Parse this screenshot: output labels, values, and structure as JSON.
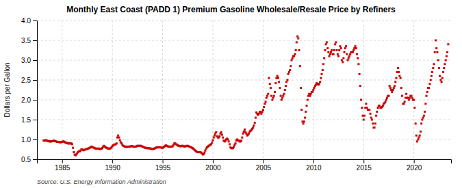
{
  "chart_data": {
    "type": "scatter",
    "title": "Monthly East Coast (PADD 1) Premium Gasoline Wholesale/Resale Price by Refiners",
    "ylabel": "Dollars per Gallon",
    "source": "Source: U.S. Energy Information Administration",
    "color": "#cc0000",
    "marker": "square",
    "grid": true,
    "xlim": [
      1982.5,
      2023.7
    ],
    "ylim": [
      0.5,
      4.0
    ],
    "xticks": [
      1985,
      1990,
      1995,
      2000,
      2005,
      2010,
      2015,
      2020
    ],
    "yticks": [
      0.5,
      {
        "value": 1.0,
        "label": "1.0"
      },
      1.5,
      {
        "value": 2.0,
        "label": "2.0"
      },
      2.5,
      {
        "value": 3.0,
        "label": "3.0"
      },
      3.5,
      {
        "value": 4.0,
        "label": "4.0"
      }
    ],
    "x": [
      1983.17,
      1983.25,
      1983.33,
      1983.42,
      1983.5,
      1983.58,
      1983.67,
      1983.75,
      1983.83,
      1983.92,
      1984.0,
      1984.08,
      1984.17,
      1984.25,
      1984.33,
      1984.42,
      1984.5,
      1984.58,
      1984.67,
      1984.75,
      1984.83,
      1984.92,
      1985.0,
      1985.08,
      1985.17,
      1985.25,
      1985.33,
      1985.42,
      1985.5,
      1985.58,
      1985.67,
      1985.75,
      1985.83,
      1985.92,
      1986.0,
      1986.08,
      1986.17,
      1986.25,
      1986.33,
      1986.42,
      1986.5,
      1986.58,
      1986.67,
      1986.75,
      1986.83,
      1986.92,
      1987.0,
      1987.08,
      1987.17,
      1987.25,
      1987.33,
      1987.42,
      1987.5,
      1987.58,
      1987.67,
      1987.75,
      1987.83,
      1987.92,
      1988.0,
      1988.08,
      1988.17,
      1988.25,
      1988.33,
      1988.42,
      1988.5,
      1988.58,
      1988.67,
      1988.75,
      1988.83,
      1988.92,
      1989.0,
      1989.08,
      1989.17,
      1989.25,
      1989.33,
      1989.42,
      1989.5,
      1989.58,
      1989.67,
      1989.75,
      1989.83,
      1989.92,
      1990.0,
      1990.08,
      1990.17,
      1990.25,
      1990.33,
      1990.42,
      1990.5,
      1990.58,
      1990.67,
      1990.75,
      1990.83,
      1990.92,
      1991.0,
      1991.08,
      1991.17,
      1991.25,
      1991.33,
      1991.42,
      1991.5,
      1991.58,
      1991.67,
      1991.75,
      1991.83,
      1991.92,
      1992.0,
      1992.08,
      1992.17,
      1992.25,
      1992.33,
      1992.42,
      1992.5,
      1992.58,
      1992.67,
      1992.75,
      1992.83,
      1992.92,
      1993.0,
      1993.08,
      1993.17,
      1993.25,
      1993.33,
      1993.42,
      1993.5,
      1993.58,
      1993.67,
      1993.75,
      1993.83,
      1993.92,
      1994.0,
      1994.08,
      1994.17,
      1994.25,
      1994.33,
      1994.42,
      1994.5,
      1994.58,
      1994.67,
      1994.75,
      1994.83,
      1994.92,
      1995.0,
      1995.08,
      1995.17,
      1995.25,
      1995.33,
      1995.42,
      1995.5,
      1995.58,
      1995.67,
      1995.75,
      1995.83,
      1995.92,
      1996.0,
      1996.08,
      1996.17,
      1996.25,
      1996.33,
      1996.42,
      1996.5,
      1996.58,
      1996.67,
      1996.75,
      1996.83,
      1996.92,
      1997.0,
      1997.08,
      1997.17,
      1997.25,
      1997.33,
      1997.42,
      1997.5,
      1997.58,
      1997.67,
      1997.75,
      1997.83,
      1997.92,
      1998.0,
      1998.08,
      1998.17,
      1998.25,
      1998.33,
      1998.42,
      1998.5,
      1998.58,
      1998.67,
      1998.75,
      1998.83,
      1998.92,
      1999.0,
      1999.08,
      1999.17,
      1999.25,
      1999.33,
      1999.42,
      1999.5,
      1999.58,
      1999.67,
      1999.75,
      1999.83,
      1999.92,
      2000.0,
      2000.08,
      2000.17,
      2000.25,
      2000.33,
      2000.42,
      2000.5,
      2000.58,
      2000.67,
      2000.75,
      2000.83,
      2000.92,
      2001.0,
      2001.08,
      2001.17,
      2001.25,
      2001.33,
      2001.42,
      2001.5,
      2001.58,
      2001.67,
      2001.75,
      2001.83,
      2001.92,
      2002.0,
      2002.08,
      2002.17,
      2002.25,
      2002.33,
      2002.42,
      2002.5,
      2002.58,
      2002.67,
      2002.75,
      2002.83,
      2002.92,
      2003.0,
      2003.08,
      2003.17,
      2003.25,
      2003.33,
      2003.42,
      2003.5,
      2003.58,
      2003.67,
      2003.75,
      2003.83,
      2003.92,
      2004.0,
      2004.08,
      2004.17,
      2004.25,
      2004.33,
      2004.42,
      2004.5,
      2004.58,
      2004.67,
      2004.75,
      2004.83,
      2004.92,
      2005.0,
      2005.08,
      2005.17,
      2005.25,
      2005.33,
      2005.42,
      2005.5,
      2005.58,
      2005.67,
      2005.75,
      2005.83,
      2005.92,
      2006.0,
      2006.08,
      2006.17,
      2006.25,
      2006.33,
      2006.42,
      2006.5,
      2006.58,
      2006.67,
      2006.75,
      2006.83,
      2006.92,
      2007.0,
      2007.08,
      2007.17,
      2007.25,
      2007.33,
      2007.42,
      2007.5,
      2007.58,
      2007.67,
      2007.75,
      2007.83,
      2007.92,
      2008.0,
      2008.08,
      2008.17,
      2008.25,
      2008.33,
      2008.42,
      2008.5,
      2008.58,
      2008.67,
      2008.75,
      2008.83,
      2008.92,
      2009.0,
      2009.08,
      2009.17,
      2009.25,
      2009.33,
      2009.42,
      2009.5,
      2009.58,
      2009.67,
      2009.75,
      2009.83,
      2009.92,
      2010.0,
      2010.08,
      2010.17,
      2010.25,
      2010.33,
      2010.42,
      2010.5,
      2010.58,
      2010.67,
      2010.75,
      2010.83,
      2010.92,
      2011.0,
      2011.08,
      2011.17,
      2011.25,
      2011.33,
      2011.42,
      2011.5,
      2011.58,
      2011.67,
      2011.75,
      2011.83,
      2011.92,
      2012.0,
      2012.08,
      2012.17,
      2012.25,
      2012.33,
      2012.42,
      2012.5,
      2012.58,
      2012.67,
      2012.75,
      2012.83,
      2012.92,
      2013.0,
      2013.08,
      2013.17,
      2013.25,
      2013.33,
      2013.42,
      2013.5,
      2013.58,
      2013.67,
      2013.75,
      2013.83,
      2013.92,
      2014.0,
      2014.08,
      2014.17,
      2014.25,
      2014.33,
      2014.42,
      2014.5,
      2014.58,
      2014.67,
      2014.75,
      2014.83,
      2014.92,
      2015.0,
      2015.08,
      2015.17,
      2015.25,
      2015.33,
      2015.42,
      2015.5,
      2015.58,
      2015.67,
      2015.75,
      2015.83,
      2015.92,
      2016.0,
      2016.08,
      2016.17,
      2016.25,
      2016.33,
      2016.42,
      2016.5,
      2016.58,
      2016.67,
      2016.75,
      2016.83,
      2016.92,
      2017.0,
      2017.08,
      2017.17,
      2017.25,
      2017.33,
      2017.42,
      2017.5,
      2017.58,
      2017.67,
      2017.75,
      2017.83,
      2017.92,
      2018.0,
      2018.08,
      2018.17,
      2018.25,
      2018.33,
      2018.42,
      2018.5,
      2018.58,
      2018.67,
      2018.75,
      2018.83,
      2018.92,
      2019.0,
      2019.08,
      2019.17,
      2019.25,
      2019.33,
      2019.42,
      2019.5,
      2019.58,
      2019.67,
      2019.75,
      2019.83,
      2019.92,
      2020.0,
      2020.08,
      2020.17,
      2020.25,
      2020.33,
      2020.42,
      2020.5,
      2020.58,
      2020.67,
      2020.75,
      2020.83,
      2020.92,
      2021.0,
      2021.08,
      2021.17,
      2021.25,
      2021.33,
      2021.42,
      2021.5,
      2021.58,
      2021.67,
      2021.75,
      2021.83,
      2021.92,
      2022.0,
      2022.08,
      2022.17,
      2022.25,
      2022.33,
      2022.42,
      2022.5,
      2022.58,
      2022.67,
      2022.75,
      2022.83,
      2022.92,
      2023.0,
      2023.08,
      2023.17,
      2023.25,
      2023.33,
      2023.42
    ],
    "values": [
      0.97,
      0.98,
      0.97,
      0.98,
      0.97,
      0.96,
      0.96,
      0.95,
      0.95,
      0.95,
      0.96,
      0.96,
      0.97,
      0.96,
      0.96,
      0.95,
      0.94,
      0.94,
      0.94,
      0.93,
      0.93,
      0.93,
      0.94,
      0.95,
      0.95,
      0.93,
      0.93,
      0.91,
      0.91,
      0.9,
      0.9,
      0.9,
      0.9,
      0.9,
      0.88,
      0.79,
      0.68,
      0.62,
      0.6,
      0.62,
      0.65,
      0.68,
      0.7,
      0.7,
      0.72,
      0.75,
      0.75,
      0.73,
      0.73,
      0.74,
      0.75,
      0.76,
      0.76,
      0.77,
      0.78,
      0.79,
      0.8,
      0.82,
      0.81,
      0.8,
      0.79,
      0.78,
      0.77,
      0.77,
      0.77,
      0.77,
      0.77,
      0.76,
      0.76,
      0.77,
      0.78,
      0.82,
      0.84,
      0.82,
      0.8,
      0.79,
      0.78,
      0.77,
      0.77,
      0.77,
      0.78,
      0.8,
      0.83,
      0.85,
      0.87,
      0.87,
      0.88,
      0.9,
      1.05,
      1.1,
      1.05,
      0.98,
      0.93,
      0.9,
      0.87,
      0.84,
      0.83,
      0.82,
      0.82,
      0.81,
      0.82,
      0.82,
      0.82,
      0.82,
      0.83,
      0.83,
      0.83,
      0.82,
      0.82,
      0.82,
      0.82,
      0.83,
      0.84,
      0.84,
      0.84,
      0.84,
      0.84,
      0.83,
      0.82,
      0.81,
      0.8,
      0.79,
      0.79,
      0.78,
      0.78,
      0.78,
      0.78,
      0.77,
      0.77,
      0.76,
      0.76,
      0.76,
      0.77,
      0.78,
      0.79,
      0.8,
      0.8,
      0.8,
      0.8,
      0.8,
      0.8,
      0.79,
      0.79,
      0.8,
      0.82,
      0.84,
      0.85,
      0.84,
      0.83,
      0.82,
      0.82,
      0.82,
      0.82,
      0.82,
      0.83,
      0.86,
      0.9,
      0.9,
      0.88,
      0.87,
      0.85,
      0.84,
      0.84,
      0.83,
      0.83,
      0.84,
      0.84,
      0.83,
      0.82,
      0.83,
      0.83,
      0.84,
      0.84,
      0.83,
      0.82,
      0.81,
      0.8,
      0.79,
      0.78,
      0.76,
      0.74,
      0.72,
      0.7,
      0.69,
      0.68,
      0.68,
      0.68,
      0.68,
      0.67,
      0.65,
      0.62,
      0.63,
      0.67,
      0.72,
      0.77,
      0.8,
      0.82,
      0.84,
      0.85,
      0.87,
      0.88,
      0.92,
      0.98,
      1.05,
      1.1,
      1.15,
      1.18,
      1.08,
      1.05,
      1.05,
      1.08,
      1.15,
      1.18,
      1.12,
      1.05,
      0.97,
      0.95,
      0.97,
      1.0,
      1.02,
      1.0,
      0.95,
      0.88,
      0.8,
      0.78,
      0.78,
      0.78,
      0.82,
      0.87,
      0.9,
      0.97,
      1.0,
      0.98,
      0.97,
      0.95,
      0.95,
      0.97,
      1.05,
      1.15,
      1.2,
      1.25,
      1.18,
      1.15,
      1.1,
      1.12,
      1.15,
      1.2,
      1.22,
      1.23,
      1.27,
      1.3,
      1.35,
      1.42,
      1.55,
      1.68,
      1.65,
      1.62,
      1.65,
      1.7,
      1.68,
      1.65,
      1.7,
      1.75,
      1.82,
      1.9,
      1.95,
      2.05,
      2.1,
      2.15,
      2.55,
      2.4,
      2.3,
      2.1,
      2.0,
      2.05,
      2.1,
      2.2,
      2.42,
      2.55,
      2.6,
      2.55,
      2.45,
      2.3,
      2.1,
      2.0,
      2.05,
      2.1,
      2.15,
      2.25,
      2.35,
      2.45,
      2.5,
      2.65,
      2.7,
      2.75,
      2.85,
      3.0,
      3.05,
      3.1,
      3.1,
      3.15,
      3.25,
      3.45,
      3.6,
      3.55,
      3.25,
      2.85,
      2.3,
      1.75,
      1.45,
      1.4,
      1.45,
      1.55,
      1.7,
      1.85,
      2.0,
      2.1,
      2.15,
      2.1,
      2.15,
      2.2,
      2.2,
      2.25,
      2.3,
      2.35,
      2.38,
      2.42,
      2.4,
      2.38,
      2.4,
      2.45,
      2.55,
      2.65,
      2.75,
      2.9,
      3.05,
      3.25,
      3.4,
      3.45,
      3.3,
      3.2,
      3.1,
      3.15,
      3.2,
      3.25,
      3.15,
      3.15,
      3.25,
      3.4,
      3.45,
      3.25,
      3.15,
      3.1,
      3.25,
      3.35,
      3.3,
      3.0,
      2.95,
      3.05,
      3.2,
      3.3,
      3.35,
      3.15,
      3.0,
      3.05,
      3.1,
      3.15,
      3.2,
      3.2,
      3.2,
      3.25,
      3.3,
      3.35,
      3.3,
      3.15,
      3.05,
      2.9,
      2.65,
      2.35,
      2.0,
      1.8,
      1.6,
      1.5,
      1.6,
      1.8,
      1.9,
      1.8,
      1.75,
      1.75,
      1.75,
      1.65,
      1.55,
      1.5,
      1.4,
      1.3,
      1.3,
      1.4,
      1.6,
      1.7,
      1.8,
      1.85,
      1.85,
      1.8,
      1.8,
      1.82,
      1.85,
      1.9,
      1.92,
      1.95,
      2.0,
      2.05,
      2.1,
      2.1,
      2.35,
      2.3,
      2.25,
      2.2,
      2.25,
      2.3,
      2.35,
      2.45,
      2.55,
      2.7,
      2.8,
      2.7,
      2.6,
      2.55,
      2.3,
      2.1,
      1.9,
      1.9,
      1.95,
      2.05,
      2.15,
      2.05,
      2.05,
      2.0,
      2.05,
      2.1,
      2.1,
      2.05,
      2.0,
      2.0,
      1.8,
      1.4,
      1.1,
      0.95,
      1.0,
      1.05,
      1.1,
      1.2,
      1.4,
      1.5,
      1.55,
      1.6,
      1.7,
      1.9,
      2.1,
      2.2,
      2.3,
      2.3,
      2.4,
      2.5,
      2.6,
      2.7,
      2.8,
      2.9,
      3.2,
      3.5,
      3.3,
      3.2,
      3.0,
      2.8,
      2.6,
      2.5,
      2.45,
      2.55,
      2.7,
      2.8,
      2.9,
      3.0,
      3.1,
      3.2,
      3.4
    ]
  }
}
